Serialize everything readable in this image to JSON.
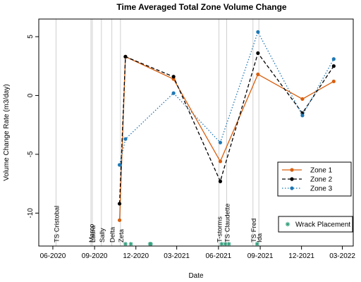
{
  "chart_data": {
    "type": "line",
    "title": "Time Averaged Total Zone Volume Change",
    "xlabel": "Date",
    "ylabel": "Volume Change Rate (m3/day)",
    "xlim": [
      "2020-05-01",
      "2022-03-25"
    ],
    "ylim": [
      -12.8,
      6.5
    ],
    "x_ticks": [
      {
        "date": "2020-06-01",
        "label": "06-2020"
      },
      {
        "date": "2020-09-01",
        "label": "09-2020"
      },
      {
        "date": "2020-12-01",
        "label": "12-2020"
      },
      {
        "date": "2021-03-01",
        "label": "03-2021"
      },
      {
        "date": "2021-06-01",
        "label": "06-2021"
      },
      {
        "date": "2021-09-01",
        "label": "09-2021"
      },
      {
        "date": "2021-12-01",
        "label": "12-2021"
      },
      {
        "date": "2022-03-01",
        "label": "03-2022"
      }
    ],
    "y_ticks": [
      {
        "value": 5,
        "label": "5"
      },
      {
        "value": 0,
        "label": "0"
      },
      {
        "value": -5,
        "label": "-5"
      },
      {
        "value": -10,
        "label": "-10"
      }
    ],
    "series": [
      {
        "name": "Zone 1",
        "color": "#D95F0E",
        "line_style": "solid",
        "points": [
          {
            "x": "2020-10-26",
            "y": -10.6
          },
          {
            "x": "2020-11-08",
            "y": 3.3
          },
          {
            "x": "2021-02-22",
            "y": 1.4
          },
          {
            "x": "2021-06-05",
            "y": -5.6
          },
          {
            "x": "2021-08-27",
            "y": 1.8
          },
          {
            "x": "2021-12-03",
            "y": -0.3
          },
          {
            "x": "2022-02-10",
            "y": 1.2
          }
        ]
      },
      {
        "name": "Zone 2",
        "color": "#000000",
        "line_style": "dashed",
        "points": [
          {
            "x": "2020-10-26",
            "y": -9.2
          },
          {
            "x": "2020-11-08",
            "y": 3.3
          },
          {
            "x": "2021-02-22",
            "y": 1.6
          },
          {
            "x": "2021-06-05",
            "y": -7.3
          },
          {
            "x": "2021-08-27",
            "y": 3.6
          },
          {
            "x": "2021-12-03",
            "y": -1.5
          },
          {
            "x": "2022-02-10",
            "y": 2.5
          }
        ]
      },
      {
        "name": "Zone 3",
        "color": "#1F78B4",
        "line_style": "dotted",
        "points": [
          {
            "x": "2020-10-26",
            "y": -5.9
          },
          {
            "x": "2020-11-08",
            "y": -3.7
          },
          {
            "x": "2021-02-22",
            "y": 0.2
          },
          {
            "x": "2021-06-05",
            "y": -4.0
          },
          {
            "x": "2021-08-27",
            "y": 5.4
          },
          {
            "x": "2021-12-03",
            "y": -1.7
          },
          {
            "x": "2022-02-10",
            "y": 3.1
          }
        ]
      }
    ],
    "storm_events": [
      {
        "name": "TS Cristobal",
        "date": "2020-06-08"
      },
      {
        "name": "Laura",
        "date": "2020-08-27"
      },
      {
        "name": "Marco",
        "date": "2020-08-24"
      },
      {
        "name": "Sally",
        "date": "2020-09-16"
      },
      {
        "name": "Delta",
        "date": "2020-10-09"
      },
      {
        "name": "Zeta",
        "date": "2020-10-28"
      },
      {
        "name": "T-storms",
        "date": "2021-06-02"
      },
      {
        "name": "TS Claudette",
        "date": "2021-06-19"
      },
      {
        "name": "TS Fred",
        "date": "2021-08-16"
      },
      {
        "name": "Ida",
        "date": "2021-08-29"
      }
    ],
    "wrack_placement": {
      "name": "Wrack Placement",
      "color": "#2E9E7B",
      "dates": [
        "2020-11-08",
        "2020-11-20",
        "2021-01-01",
        "2021-01-03",
        "2021-06-08",
        "2021-06-16",
        "2021-06-24",
        "2021-08-25"
      ]
    },
    "grid": false,
    "legend_position": "right"
  }
}
